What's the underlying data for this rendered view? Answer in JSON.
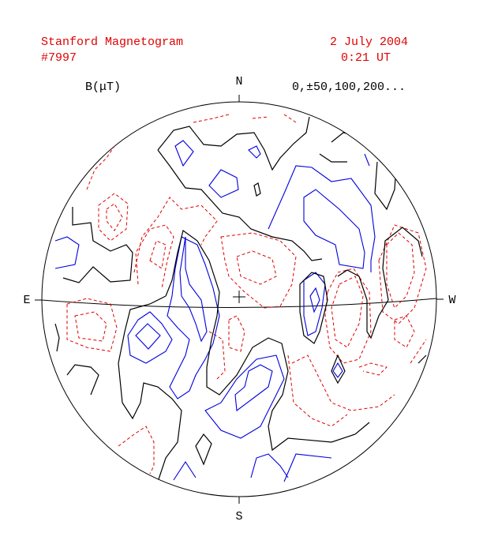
{
  "header": {
    "title": "Stanford Magnetogram",
    "number": "#7997",
    "date": "2 July 2004",
    "time": "0:21 UT"
  },
  "legend": {
    "unit": "B(μT)",
    "levels": "0,±50,100,200..."
  },
  "directions": {
    "north": "N",
    "south": "S",
    "east": "E",
    "west": "W"
  }
}
